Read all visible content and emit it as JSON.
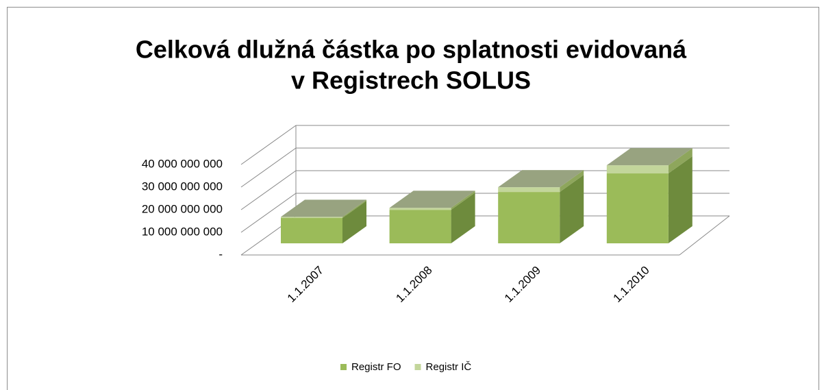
{
  "chart_data": {
    "type": "bar3d_stacked",
    "title": [
      "Celková dlužná částka po splatnosti evidovaná",
      "v Registrech SOLUS"
    ],
    "categories": [
      "1.1.2007",
      "1.1.2008",
      "1.1.2009",
      "1.1.2010"
    ],
    "series": [
      {
        "name": "Registr FO",
        "color": "#9bbb59",
        "side": "#6e8b3d",
        "values": [
          11200000000,
          14800000000,
          22700000000,
          30900000000
        ]
      },
      {
        "name": "Registr IČ",
        "color": "#c3d69b",
        "side": "#8ea65c",
        "values": [
          500000000,
          900000000,
          2100000000,
          3600000000
        ]
      }
    ],
    "top_color": "#98a380",
    "ylim": [
      0,
      40000000000
    ],
    "yticks": [
      {
        "value": 0,
        "label": "-"
      },
      {
        "value": 10000000000,
        "label": "10 000 000 000"
      },
      {
        "value": 20000000000,
        "label": "20 000 000 000"
      },
      {
        "value": 30000000000,
        "label": "30 000 000 000"
      },
      {
        "value": 40000000000,
        "label": "40 000 000 000"
      }
    ],
    "grid": true,
    "legend": "bottom"
  }
}
